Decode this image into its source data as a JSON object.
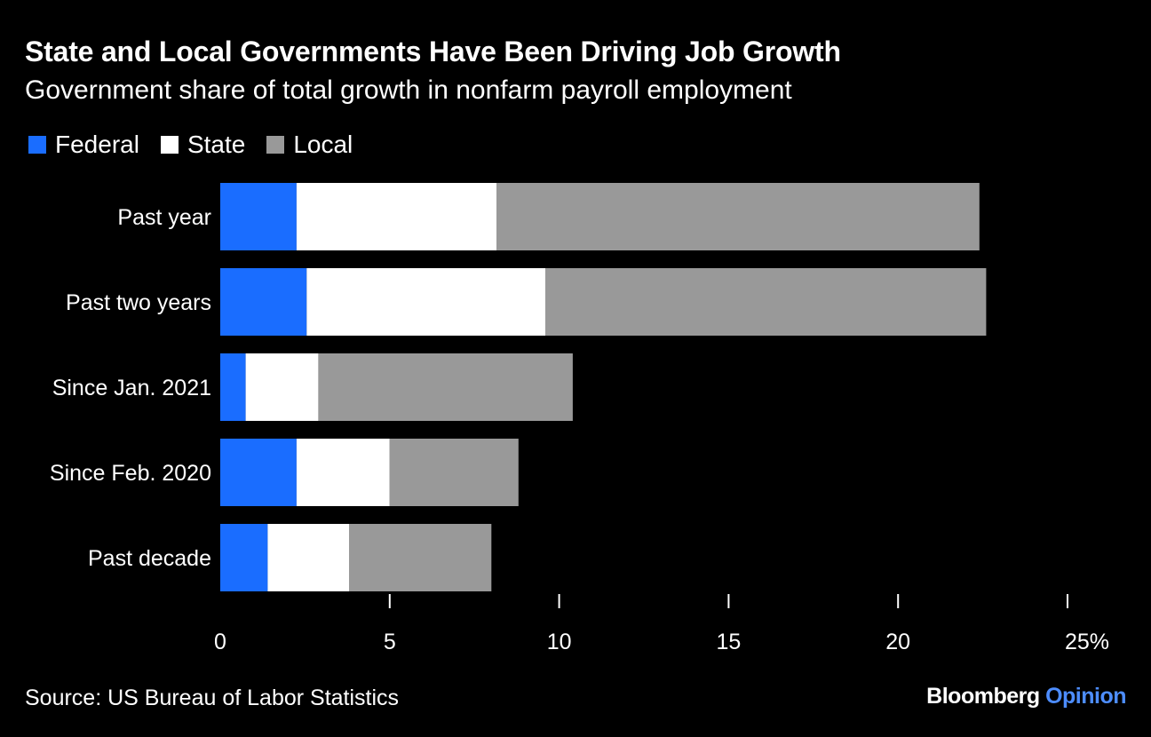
{
  "header": {
    "title": "State and Local Governments Have Been Driving Job Growth",
    "subtitle": "Government share of total growth in nonfarm payroll employment"
  },
  "legend": [
    {
      "label": "Federal",
      "color": "#1a6dff"
    },
    {
      "label": "State",
      "color": "#ffffff"
    },
    {
      "label": "Local",
      "color": "#999999"
    }
  ],
  "chart_data": {
    "type": "bar",
    "orientation": "horizontal",
    "stacked": true,
    "title": "State and Local Governments Have Been Driving Job Growth",
    "subtitle": "Government share of total growth in nonfarm payroll employment",
    "xlabel": "",
    "ylabel": "",
    "xlim": [
      0,
      25
    ],
    "xticks": [
      0,
      5,
      10,
      15,
      20,
      25
    ],
    "xtick_labels": [
      "0",
      "5",
      "10",
      "15",
      "20",
      "25%"
    ],
    "categories": [
      "Past year",
      "Past two years",
      "Since Jan. 2021",
      "Since Feb. 2020",
      "Past decade"
    ],
    "series": [
      {
        "name": "Federal",
        "color": "#1a6dff",
        "values": [
          2.25,
          2.55,
          0.75,
          2.25,
          1.4
        ]
      },
      {
        "name": "State",
        "color": "#ffffff",
        "values": [
          5.9,
          7.05,
          2.15,
          2.75,
          2.4
        ]
      },
      {
        "name": "Local",
        "color": "#999999",
        "values": [
          14.25,
          13.0,
          7.5,
          3.8,
          4.2
        ]
      }
    ],
    "legend_position": "top-left",
    "grid": false
  },
  "footer": {
    "source": "Source: US Bureau of Labor Statistics",
    "brand_main": "Bloomberg",
    "brand_accent": "Opinion"
  }
}
